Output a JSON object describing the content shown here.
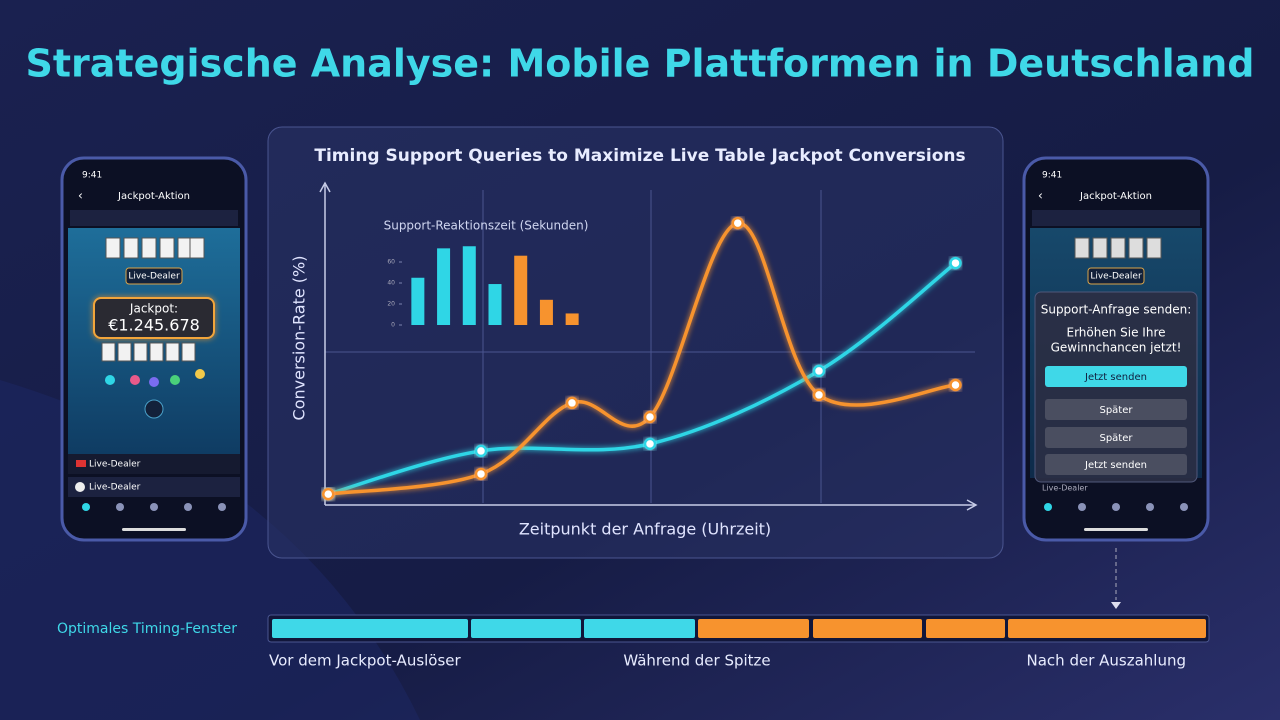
{
  "title": "Strategische Analyse: Mobile Plattformen in Deutschland",
  "chart_data": [
    {
      "type": "line",
      "title": "Timing Support Queries to Maximize Live Table Jackpot Conversions",
      "x_label": "Zeitpunkt der Anfrage (Uhrzeit)",
      "y_label": "Conversion-Rate (%)",
      "xlim": [
        0,
        100
      ],
      "ylim": [
        0,
        100
      ],
      "series": [
        {
          "color": "#2fd6e6",
          "x": [
            0.5,
            24,
            50,
            76,
            97
          ],
          "values": [
            3.4,
            16.9,
            19.1,
            41.9,
            75.6
          ]
        },
        {
          "color": "#f7932e",
          "x": [
            0.5,
            24,
            38,
            50,
            63.5,
            76,
            97
          ],
          "values": [
            3.4,
            9.7,
            31.9,
            27.5,
            88.1,
            34.4,
            37.5
          ]
        }
      ]
    },
    {
      "type": "bar",
      "title": "Support-Reaktionszeit (Sekunden)",
      "categories": [
        null,
        null,
        null,
        null,
        null,
        null,
        null
      ],
      "values": [
        45,
        73,
        75,
        39,
        66,
        24,
        11
      ],
      "colors": [
        "#2fd6e6",
        "#2fd6e6",
        "#2fd6e6",
        "#2fd6e6",
        "#f7932e",
        "#f7932e",
        "#f7932e"
      ],
      "ylim": [
        0,
        80
      ],
      "yticks": [
        0,
        20,
        40,
        60
      ]
    }
  ],
  "left_phone": {
    "time": "9:41",
    "header": "Jackpot-Aktion",
    "chip": "Live-Dealer",
    "jackpot_label": "Jackpot:",
    "jackpot_value": "€1.245.678",
    "rows": [
      "Live-Dealer",
      "Live-Dealer"
    ]
  },
  "right_phone": {
    "time": "9:41",
    "header": "Jackpot-Aktion",
    "chip": "Live-Dealer",
    "dialog_title": "Support-Anfrage senden:",
    "dialog_text": [
      "Erhöhen Sie Ihre",
      "Gewinnchancen jetzt!"
    ],
    "buttons": [
      "Jetzt senden",
      "Später",
      "Später",
      "Jetzt senden"
    ],
    "row": "Live-Dealer"
  },
  "timing": {
    "label": "Optimales Timing-Fenster",
    "phases": [
      "Vor dem Jackpot-Auslöser",
      "Während der Spitze",
      "Nach der Auszahlung"
    ]
  }
}
